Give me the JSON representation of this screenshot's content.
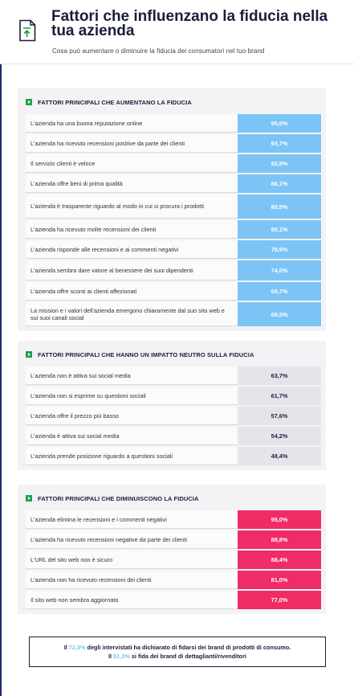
{
  "header": {
    "title": "Fattori che influenzano la fiducia nella tua azienda",
    "subtitle": "Cosa può aumentare o diminuire la fiducia dei consumatori nel tuo brand",
    "icon": "document-arrow-up-icon"
  },
  "colors": {
    "increase": "#7bc4f5",
    "neutral": "#e4e4ea",
    "decrease": "#ef2c66",
    "accent": "#1fa04a",
    "navy": "#1b1e3a"
  },
  "chart_data": [
    {
      "type": "table",
      "title": "FATTORI PRINCIPALI CHE AUMENTANO LA FIDUCIA",
      "unit": "%",
      "rows": [
        {
          "label": "L'azienda ha una buona reputazione online",
          "value": 95.6,
          "display": "95,6%"
        },
        {
          "label": "L'azienda ha ricevuto recensioni positive da parte dei clienti",
          "value": 93.7,
          "display": "93,7%"
        },
        {
          "label": "Il servizio clienti è veloce",
          "value": 92.9,
          "display": "92,9%"
        },
        {
          "label": "L'azienda offre beni di prima qualità",
          "value": 86.1,
          "display": "86,1%"
        },
        {
          "label": "L'azienda è trasparente riguardo al modo in cui si procura i prodotti",
          "value": 80.5,
          "display": "80,5%"
        },
        {
          "label": "L'azienda ha ricevuto molte recensioni dei clienti",
          "value": 80.1,
          "display": "80,1%"
        },
        {
          "label": "L'azienda risponde alle recensioni e ai commenti negativi",
          "value": 79.9,
          "display": "79,9%"
        },
        {
          "label": "L'azienda sembra dare valore al benessere dei suoi dipendenti",
          "value": 74.0,
          "display": "74,0%"
        },
        {
          "label": "L'azienda offre sconti ai clienti affezionati",
          "value": 68.7,
          "display": "68,7%"
        },
        {
          "label": "La mission e i valori dell'azienda emergono chiaramente dal suo sito web e sui suoi canali social",
          "value": 68.5,
          "display": "68,5%"
        }
      ]
    },
    {
      "type": "table",
      "title": "FATTORI PRINCIPALI CHE HANNO UN IMPATTO NEUTRO SULLA FIDUCIA",
      "unit": "%",
      "rows": [
        {
          "label": "L'azienda non è attiva sui social media",
          "value": 63.7,
          "display": "63,7%"
        },
        {
          "label": "L'azienda non si esprime su questioni sociali",
          "value": 61.7,
          "display": "61,7%"
        },
        {
          "label": "L'azienda offre il prezzo più basso",
          "value": 57.6,
          "display": "57,6%"
        },
        {
          "label": "L'azienda è attiva sui social media",
          "value": 54.2,
          "display": "54,2%"
        },
        {
          "label": "L'azienda prende posizione riguardo a questioni sociali",
          "value": 48.4,
          "display": "48,4%"
        }
      ]
    },
    {
      "type": "table",
      "title": "FATTORI PRINCIPALI CHE DIMINUISCONO LA FIDUCIA",
      "unit": "%",
      "rows": [
        {
          "label": "L'azienda elimina le recensioni e i commenti negativi",
          "value": 95.0,
          "display": "95,0%"
        },
        {
          "label": "L'azienda ha ricevuto recensioni negative da parte dei clienti",
          "value": 88.8,
          "display": "88,8%"
        },
        {
          "label": "L'URL del sito web non è sicuro",
          "value": 88.4,
          "display": "88,4%"
        },
        {
          "label": "L'azienda non ha ricevuto recensioni dei clienti",
          "value": 81.0,
          "display": "81,0%"
        },
        {
          "label": "Il sito web non sembra aggiornato",
          "value": 77.0,
          "display": "77,0%"
        }
      ]
    }
  ],
  "footer": {
    "line1_pre": "Il ",
    "line1_pct": "72,3%",
    "line1_post": " degli intervistati ha dichiarato di fidarsi dei brand di prodotti di consumo.",
    "line2_pre": "Il ",
    "line2_pct": "51,3%",
    "line2_post": " si fida dei brand di dettaglianti/rivenditori"
  }
}
